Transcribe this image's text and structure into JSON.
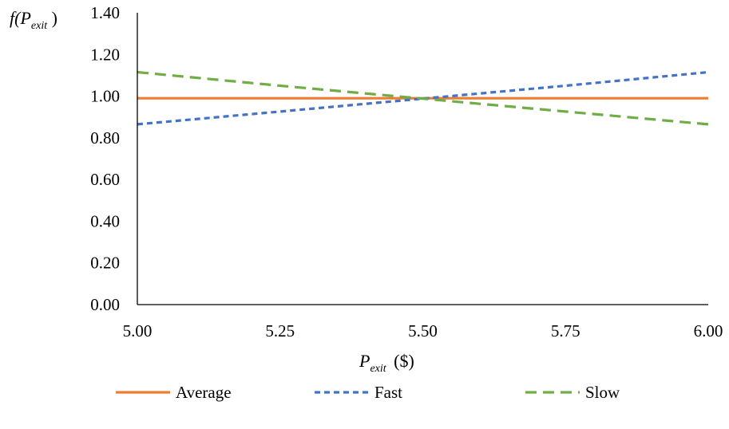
{
  "chart_data": {
    "type": "line",
    "x": [
      5.0,
      5.25,
      5.5,
      5.75,
      6.0
    ],
    "xlim": [
      5.0,
      6.0
    ],
    "ylim": [
      0.0,
      1.4
    ],
    "x_ticks": [
      "5.00",
      "5.25",
      "5.50",
      "5.75",
      "6.00"
    ],
    "y_ticks": [
      "0.00",
      "0.20",
      "0.40",
      "0.60",
      "0.80",
      "1.00",
      "1.20",
      "1.40"
    ],
    "xlabel": {
      "main": "P",
      "sub": "exit",
      "rest": " ($)"
    },
    "ylabel": {
      "pre": "f(",
      "main": "P",
      "sub": "exit",
      "post": " )"
    },
    "grid": false,
    "legend_position": "bottom",
    "series": [
      {
        "name": "Average",
        "style": "solid",
        "color": "#ED7D31",
        "values": [
          0.99,
          0.99,
          0.99,
          0.99,
          0.99
        ]
      },
      {
        "name": "Fast",
        "style": "dashed",
        "color": "#4472C4",
        "values": [
          0.865,
          0.926,
          0.988,
          1.05,
          1.115
        ]
      },
      {
        "name": "Slow",
        "style": "long-dashed",
        "color": "#70AD47",
        "values": [
          1.115,
          1.05,
          0.988,
          0.926,
          0.865
        ]
      }
    ]
  }
}
